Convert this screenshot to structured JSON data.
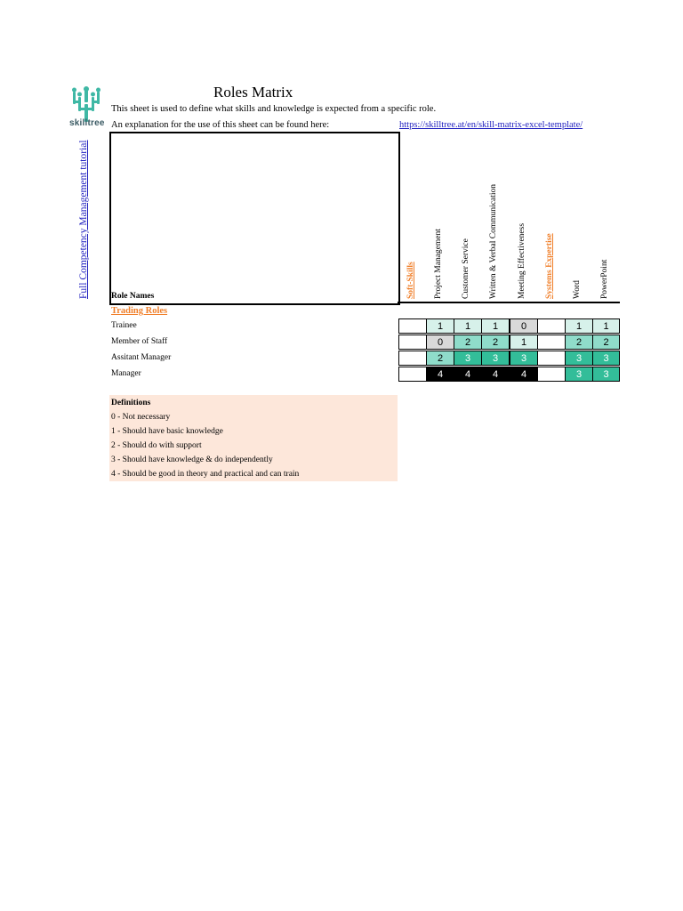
{
  "brand": {
    "name": "skilltree",
    "color": "#3fb8a5"
  },
  "title": "Roles Matrix",
  "description": "This sheet is used to define what skills and knowledge is expected from a specific role.",
  "explanation": "An explanation for the use of this sheet can be found here:",
  "link": "https://skilltree.at/en/skill-matrix-excel-template/",
  "tutorial_link": "Full Competency Management tutorial",
  "role_names_label": "Role Names",
  "section": "Trading Roles",
  "columns": [
    {
      "label": "Soft-Skills",
      "category": true
    },
    {
      "label": "Project Management",
      "category": false
    },
    {
      "label": "Customer Service",
      "category": false
    },
    {
      "label": "Written & Verbal Communication",
      "category": false
    },
    {
      "label": "Meeting Effectiveness",
      "category": false
    },
    {
      "label": "Systems Expertise",
      "category": true
    },
    {
      "label": "Word",
      "category": false
    },
    {
      "label": "PowerPoint",
      "category": false
    }
  ],
  "roles": [
    {
      "name": "Trainee",
      "values": [
        "",
        "1",
        "1",
        "1",
        "0",
        "",
        "1",
        "1"
      ]
    },
    {
      "name": "Member of Staff",
      "values": [
        "",
        "0",
        "2",
        "2",
        "1",
        "",
        "2",
        "2"
      ]
    },
    {
      "name": "Assitant Manager",
      "values": [
        "",
        "2",
        "3",
        "3",
        "3",
        "",
        "3",
        "3"
      ]
    },
    {
      "name": "Manager",
      "values": [
        "",
        "4",
        "4",
        "4",
        "4",
        "",
        "3",
        "3"
      ]
    }
  ],
  "level_colors": {
    "0": "#d9d9d9",
    "1": "#d7f1ea",
    "2": "#8fdcca",
    "3": "#33bd99",
    "4": "#000000"
  },
  "definitions": {
    "title": "Definitions",
    "items": [
      "0 - Not necessary",
      "1 - Should have basic knowledge",
      "2 - Should do with support",
      "3 - Should have knowledge & do independently",
      "4 - Should be good in theory and practical and can train"
    ]
  }
}
